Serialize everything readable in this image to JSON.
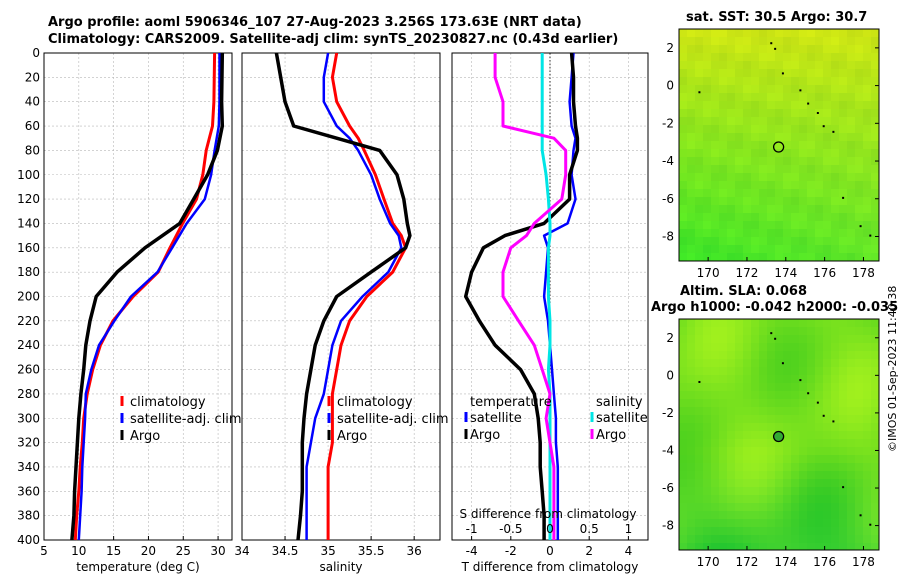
{
  "titles": {
    "line1": "Argo profile: aoml 5906346_107 27-Aug-2023 3.256S 173.63E (NRT data)",
    "line2": "Climatology: CARS2009. Satellite-adj clim: synTS_20230827.nc (0.43d earlier)",
    "map1": "sat. SST: 30.5 Argo: 30.7",
    "map2a": "Altim. SLA: 0.068",
    "map2b": "Argo h1000: -0.042 h2000: -0.035"
  },
  "credit": "©IMOS 01-Sep-2023 11:40:38",
  "colors": {
    "clim": "#ff0000",
    "sat": "#0000ff",
    "argo": "#000000",
    "satS": "#00e5e5",
    "argoS": "#ff00ff"
  },
  "chart_data": [
    {
      "type": "line",
      "xlabel": "temperature (deg C)",
      "xlim": [
        5,
        32
      ],
      "ylim": [
        400,
        0
      ],
      "xticks": [
        "5",
        "10",
        "15",
        "20",
        "25",
        "30"
      ],
      "xtick_values": [
        5,
        10,
        15,
        20,
        25,
        30
      ],
      "yticks": [
        "0",
        "20",
        "40",
        "60",
        "80",
        "100",
        "120",
        "140",
        "160",
        "180",
        "200",
        "220",
        "240",
        "260",
        "280",
        "300",
        "320",
        "340",
        "360",
        "380",
        "400"
      ],
      "legend": [
        "climatology",
        "satellite-adj. clim",
        "Argo"
      ],
      "depth": [
        0,
        40,
        60,
        80,
        100,
        120,
        140,
        160,
        180,
        200,
        220,
        240,
        260,
        280,
        300,
        320,
        340,
        360,
        380,
        400
      ],
      "series": [
        {
          "name": "climatology",
          "values": [
            29.5,
            29.4,
            29.2,
            28.3,
            27.8,
            26.9,
            24.9,
            23.1,
            21.4,
            17.8,
            14.9,
            13.1,
            12.0,
            11.2,
            10.7,
            10.5,
            10.2,
            10.0,
            9.7,
            9.5
          ]
        },
        {
          "name": "satellite-adj. clim",
          "values": [
            30.2,
            30.2,
            30.1,
            29.5,
            29.0,
            28.1,
            25.5,
            23.4,
            21.3,
            17.5,
            15.1,
            12.9,
            11.8,
            11.0,
            10.9,
            10.7,
            10.5,
            10.4,
            10.2,
            10.0
          ]
        },
        {
          "name": "Argo",
          "values": [
            30.6,
            30.5,
            30.6,
            29.9,
            28.5,
            26.5,
            24.5,
            19.5,
            15.5,
            12.5,
            11.6,
            11.0,
            10.7,
            10.3,
            10.0,
            9.8,
            9.6,
            9.4,
            9.3,
            9.0
          ]
        }
      ]
    },
    {
      "type": "line",
      "xlabel": "salinity",
      "xlim": [
        34,
        36.3
      ],
      "ylim": [
        400,
        0
      ],
      "xticks": [
        "34",
        "34.5",
        "35",
        "35.5",
        "36"
      ],
      "xtick_values": [
        34,
        34.5,
        35,
        35.5,
        36
      ],
      "legend": [
        "climatology",
        "satellite-adj. clim",
        "Argo"
      ],
      "depth": [
        0,
        20,
        40,
        60,
        70,
        80,
        100,
        120,
        140,
        150,
        160,
        180,
        200,
        220,
        240,
        260,
        280,
        300,
        320,
        340,
        360,
        380,
        400
      ],
      "series": [
        {
          "name": "climatology",
          "values": [
            35.1,
            35.05,
            35.1,
            35.25,
            35.35,
            35.42,
            35.55,
            35.65,
            35.75,
            35.85,
            35.9,
            35.75,
            35.45,
            35.25,
            35.15,
            35.1,
            35.05,
            35.05,
            35.05,
            35.0,
            35.0,
            35.0,
            35.0
          ]
        },
        {
          "name": "satellite-adj. clim",
          "values": [
            35.0,
            34.95,
            34.95,
            35.1,
            35.25,
            35.35,
            35.5,
            35.6,
            35.72,
            35.82,
            35.85,
            35.7,
            35.4,
            35.15,
            35.05,
            35.0,
            34.95,
            34.85,
            34.8,
            34.75,
            34.75,
            34.75,
            34.75
          ]
        },
        {
          "name": "Argo",
          "values": [
            34.4,
            34.45,
            34.5,
            34.6,
            35.1,
            35.6,
            35.8,
            35.88,
            35.92,
            35.95,
            35.9,
            35.5,
            35.1,
            34.95,
            34.85,
            34.8,
            34.75,
            34.72,
            34.7,
            34.7,
            34.7,
            34.68,
            34.65
          ]
        }
      ]
    },
    {
      "type": "line",
      "xlabel": "T difference from climatology",
      "xlabel_top": "S difference from climatology",
      "xlim": [
        -5,
        5
      ],
      "ylim": [
        400,
        0
      ],
      "xticks": [
        "-4",
        "-2",
        "0",
        "2",
        "4"
      ],
      "xtick_values": [
        -4,
        -2,
        0,
        2,
        4
      ],
      "top_xticks": [
        "-1",
        "-0.5",
        "0",
        "0.5",
        "1"
      ],
      "top_xtick_values": [
        -1,
        -0.5,
        0,
        0.5,
        1
      ],
      "legend_temperature_title": "temperature",
      "legend_salinity_title": "salinity",
      "legend": [
        "satellite",
        "Argo",
        "satellite",
        "Argo"
      ],
      "depth": [
        0,
        20,
        40,
        60,
        70,
        80,
        100,
        120,
        140,
        150,
        160,
        180,
        200,
        220,
        240,
        260,
        280,
        300,
        320,
        340,
        360,
        380,
        400
      ],
      "series": [
        {
          "name": "temperature satellite",
          "values": [
            1.2,
            1.1,
            1.0,
            1.1,
            1.3,
            1.2,
            1.1,
            1.3,
            0.9,
            -0.3,
            -0.1,
            -0.2,
            -0.3,
            -0.1,
            0.0,
            0.1,
            0.2,
            0.3,
            0.3,
            0.4,
            0.4,
            0.4,
            0.4
          ]
        },
        {
          "name": "temperature Argo",
          "values": [
            1.1,
            1.2,
            1.2,
            1.3,
            1.4,
            1.4,
            1.0,
            1.0,
            -0.3,
            -2.3,
            -3.4,
            -4.0,
            -4.3,
            -3.6,
            -2.8,
            -1.5,
            -0.8,
            -0.6,
            -0.5,
            -0.5,
            -0.4,
            -0.3,
            -0.3
          ]
        },
        {
          "name": "salinity satellite",
          "values": [
            -0.1,
            -0.1,
            -0.1,
            -0.1,
            -0.1,
            -0.1,
            -0.05,
            -0.02,
            0.0,
            0.0,
            -0.02,
            -0.02,
            -0.02,
            0.0,
            0.0,
            -0.02,
            0.0,
            0.0,
            0.0,
            0.0,
            0.0,
            0.0,
            0.0
          ]
        },
        {
          "name": "salinity Argo",
          "values": [
            -0.7,
            -0.7,
            -0.6,
            -0.6,
            0.05,
            0.2,
            0.2,
            0.15,
            -0.2,
            -0.3,
            -0.5,
            -0.6,
            -0.6,
            -0.4,
            -0.2,
            -0.1,
            0.0,
            -0.05,
            0.0,
            0.05,
            0.05,
            0.05,
            0.05
          ]
        }
      ]
    },
    {
      "type": "heatmap",
      "title": "sat. SST: 30.5 Argo: 30.7",
      "xlim": [
        168.5,
        178.8
      ],
      "ylim": [
        -9.3,
        3.0
      ],
      "xticks": [
        "170",
        "172",
        "174",
        "176",
        "178"
      ],
      "xtick_values": [
        170,
        172,
        174,
        176,
        178
      ],
      "yticks": [
        "2",
        "0",
        "-2",
        "-4",
        "-6",
        "-8"
      ],
      "ytick_values": [
        2,
        0,
        -2,
        -4,
        -6,
        -8
      ],
      "argo_position": [
        173.63,
        -3.256
      ]
    },
    {
      "type": "heatmap",
      "title": "Altim. SLA: 0.068  Argo h1000: -0.042 h2000: -0.035",
      "xlim": [
        168.5,
        178.8
      ],
      "ylim": [
        -9.3,
        3.0
      ],
      "xticks": [
        "170",
        "172",
        "174",
        "176",
        "178"
      ],
      "xtick_values": [
        170,
        172,
        174,
        176,
        178
      ],
      "yticks": [
        "2",
        "0",
        "-2",
        "-4",
        "-6",
        "-8"
      ],
      "ytick_values": [
        2,
        0,
        -2,
        -4,
        -6,
        -8
      ],
      "argo_position": [
        173.63,
        -3.256
      ]
    }
  ]
}
